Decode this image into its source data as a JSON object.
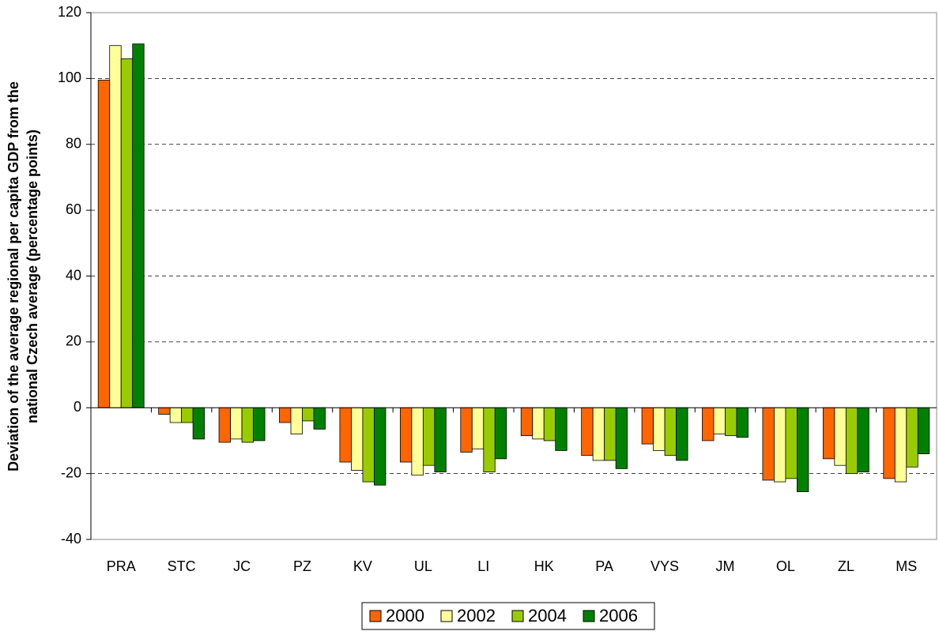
{
  "chart_data": {
    "type": "bar",
    "y_label": [
      "Deviation of the average regional per capita GDP from the",
      "national Czech average (percentage points)"
    ],
    "categories": [
      "PRA",
      "STC",
      "JC",
      "PZ",
      "KV",
      "UL",
      "LI",
      "HK",
      "PA",
      "VYS",
      "JM",
      "OL",
      "ZL",
      "MS"
    ],
    "series": [
      {
        "name": "2000",
        "color": "#ff6600",
        "values": [
          99.5,
          -2,
          -10.5,
          -4.5,
          -16.5,
          -16.5,
          -13.5,
          -8.5,
          -14.5,
          -11,
          -10,
          -22,
          -15.5,
          -21.5
        ]
      },
      {
        "name": "2002",
        "color": "#ffff99",
        "values": [
          110,
          -4.5,
          -9.5,
          -8,
          -19,
          -20.5,
          -12.5,
          -9.5,
          -16,
          -13,
          -8,
          -22.5,
          -17.5,
          -22.5
        ]
      },
      {
        "name": "2004",
        "color": "#99cc00",
        "values": [
          106,
          -4.5,
          -10.5,
          -4,
          -22.5,
          -17.5,
          -19.5,
          -10,
          -16,
          -14.5,
          -8.5,
          -21.5,
          -20,
          -18
        ]
      },
      {
        "name": "2006",
        "color": "#008000",
        "values": [
          110.5,
          -9.5,
          -10,
          -6.5,
          -23.5,
          -19.5,
          -15.5,
          -13,
          -18.5,
          -16,
          -9,
          -25.5,
          -19.5,
          -14
        ]
      }
    ],
    "ylim": [
      -40,
      120
    ],
    "yticks": [
      -40,
      -20,
      0,
      20,
      40,
      60,
      80,
      100,
      120
    ],
    "grid": true,
    "legend": "bottom"
  }
}
